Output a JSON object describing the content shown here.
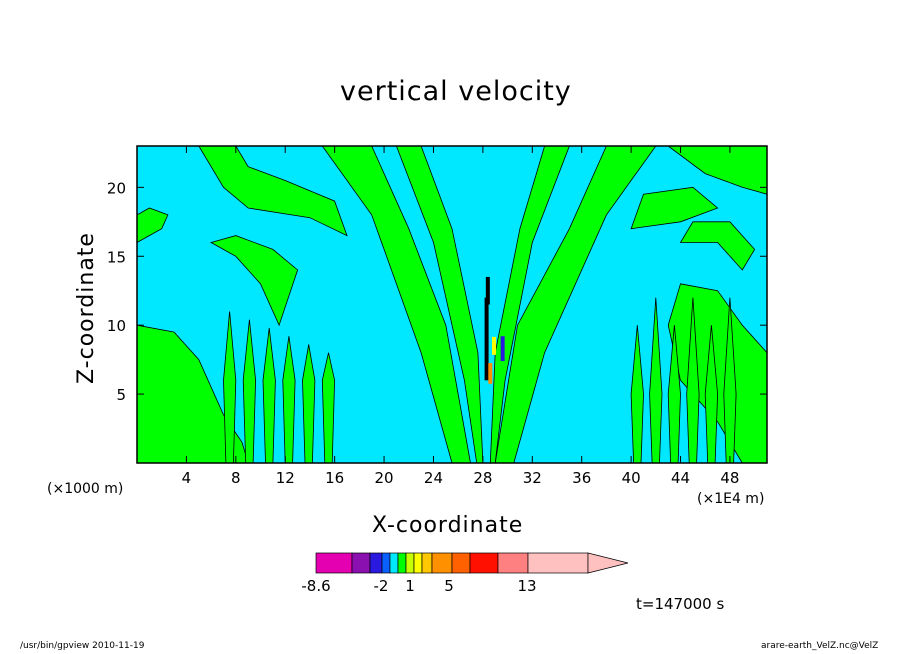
{
  "chart_data": {
    "type": "heatmap",
    "title": "vertical velocity",
    "xlabel": "X-coordinate",
    "ylabel": "Z-coordinate",
    "x_unit_left": "(×1000 m)",
    "x_unit_right": "(×1E4 m)",
    "x_ticks": [
      4,
      8,
      12,
      16,
      20,
      24,
      28,
      32,
      36,
      40,
      44,
      48
    ],
    "y_ticks": [
      5,
      10,
      15,
      20
    ],
    "xlim": [
      0,
      51
    ],
    "ylim": [
      0,
      23
    ],
    "timestamp": "t=147000 s",
    "colorbar": {
      "labels": [
        "-8.6",
        "-2",
        "1",
        "5",
        "13"
      ],
      "colors": [
        "#e400b0",
        "#8a10b0",
        "#2a1ae0",
        "#0a60ff",
        "#00e8ff",
        "#00ff00",
        "#c8ff00",
        "#ffff00",
        "#ffc800",
        "#ff9000",
        "#ff6000",
        "#ff1000",
        "#ff8080",
        "#ffc0c0"
      ]
    },
    "field_colors": {
      "background": "#00e8ff",
      "positive_band": "#00ff00",
      "contour_line": "#000000"
    }
  },
  "footer": {
    "left": "/usr/bin/gpview   2010-11-19",
    "right": "arare-earth_VelZ.nc@VelZ"
  }
}
